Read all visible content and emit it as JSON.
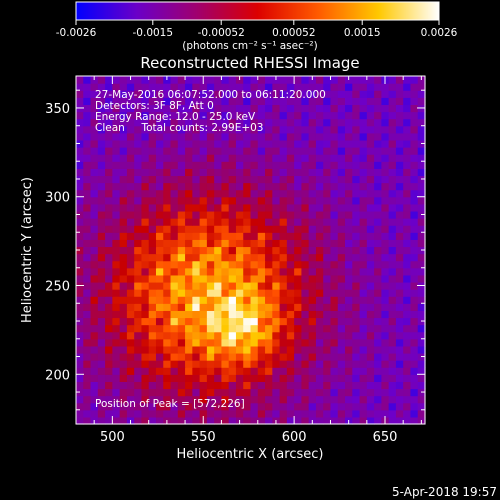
{
  "colorbar": {
    "tick_labels": [
      "-0.0026",
      "-0.0015",
      "-0.00052",
      "0.00052",
      "0.0015",
      "0.0026"
    ],
    "ticks": [
      -0.0026,
      -0.0015,
      -0.00052,
      0.00052,
      0.0015,
      0.0026
    ],
    "range": [
      -0.0026,
      0.0026
    ],
    "unit_label": "(photons cm⁻² s⁻¹ asec⁻²)",
    "colors": [
      "#0000ff",
      "#6a00c8",
      "#a0006e",
      "#dc0000",
      "#ff5a00",
      "#ffc800",
      "#ffffff"
    ]
  },
  "chart_data": {
    "type": "heatmap",
    "title": "Reconstructed RHESSI Image",
    "xlabel": "Heliocentric X (arcsec)",
    "ylabel": "Heliocentric Y (arcsec)",
    "xlim": [
      480,
      672
    ],
    "ylim": [
      172,
      368
    ],
    "x_ticks": [
      500,
      550,
      600,
      650
    ],
    "y_ticks": [
      200,
      250,
      300,
      350
    ],
    "annotations": [
      "27-May-2016 06:07:52.000 to 06:11:20.000",
      "Detectors: 3F 8F, Att 0",
      "Energy Range: 12.0 - 25.0 keV",
      "Clean     Total counts: 2.99E+03"
    ],
    "peak_label": "Position of Peak = [572,226]",
    "peak": [
      572,
      226
    ],
    "source_center": [
      553,
      245
    ],
    "source_extent_arcsec": 62,
    "background": "purple-blue noise with dark-red ring artifacts",
    "grid": false
  },
  "footer": {
    "timestamp": "5-Apr-2018 19:57"
  }
}
